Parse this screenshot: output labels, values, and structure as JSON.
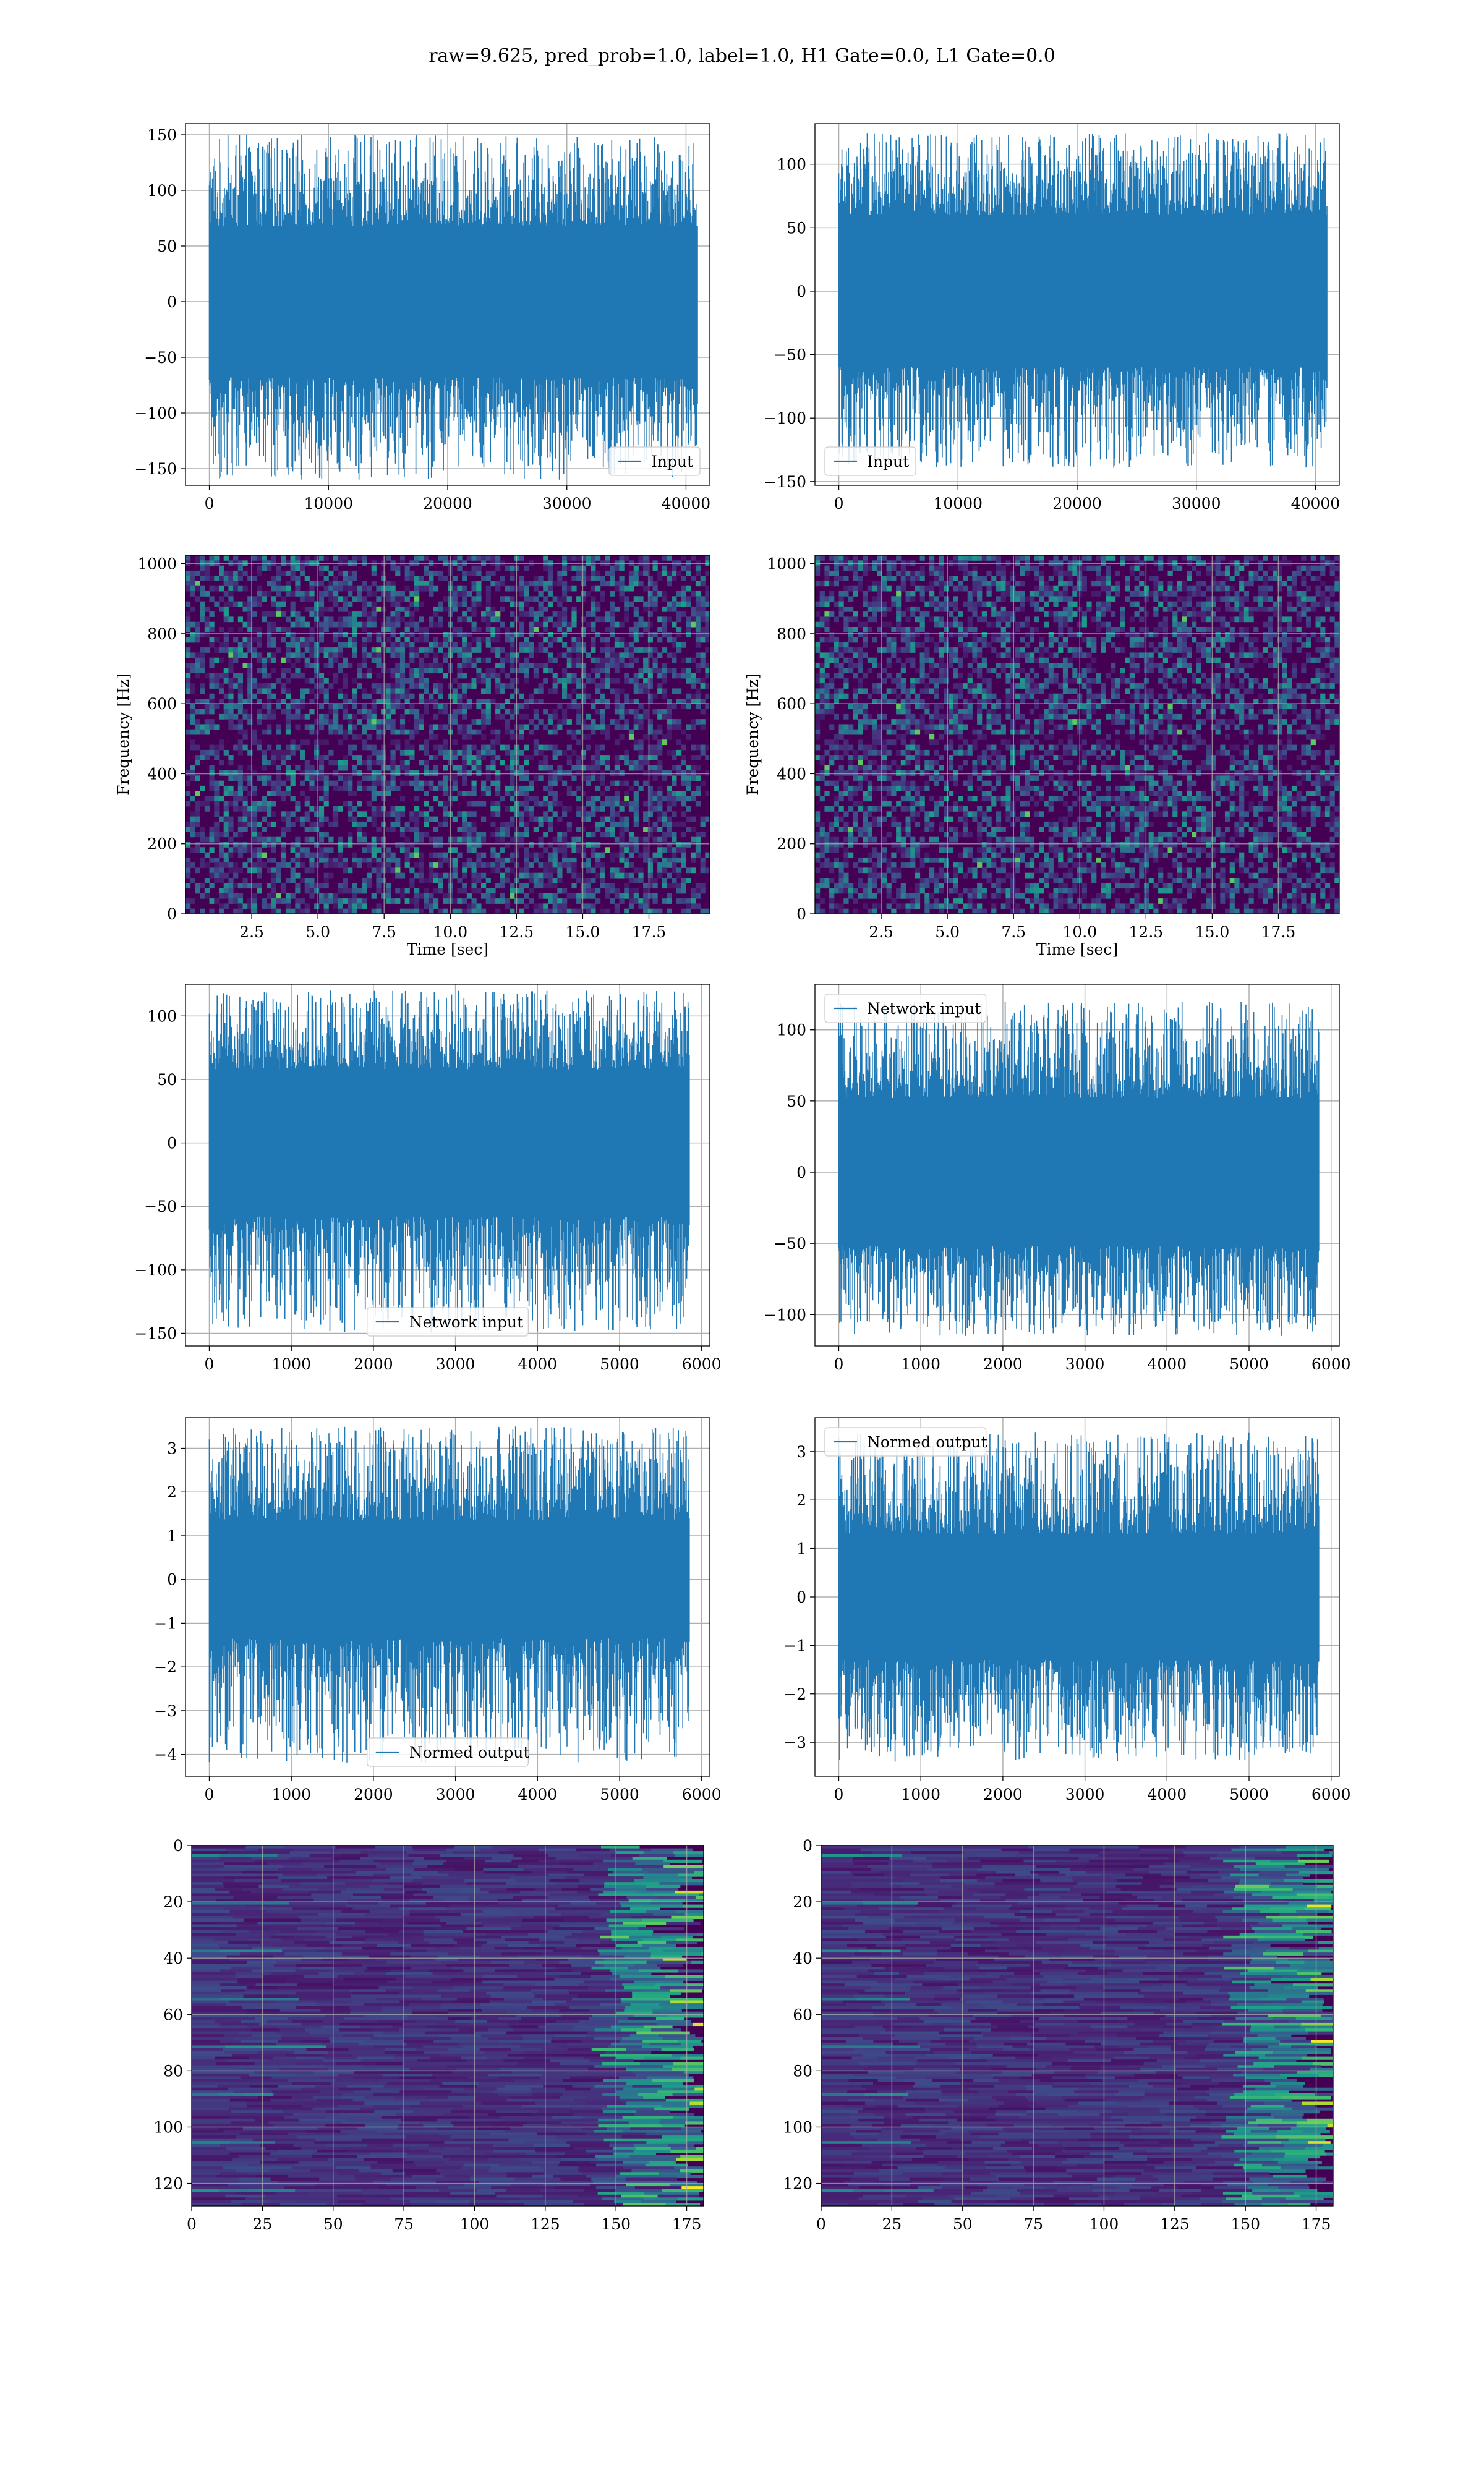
{
  "figure": {
    "suptitle": "raw=9.625, pred_prob=1.0, label=1.0, H1 Gate=0.0, L1 Gate=0.0"
  },
  "colors": {
    "line": "#1f77b4",
    "grid": "#b0b0b0",
    "viridis_low": "#440154",
    "viridis_mid": "#21918c",
    "viridis_high": "#fde725"
  },
  "chart_data": [
    {
      "id": "r1-left",
      "type": "line",
      "legend": "Input",
      "legend_loc": "lower right",
      "xlim": [
        -2000,
        42000
      ],
      "ylim": [
        -165,
        160
      ],
      "xticks": [
        0,
        10000,
        20000,
        30000,
        40000
      ],
      "yticks": [
        -150,
        -100,
        -50,
        0,
        50,
        100,
        150
      ],
      "x_range": [
        0,
        40960
      ],
      "band": [
        -68,
        68
      ],
      "spike_max": [
        150,
        -160
      ],
      "grid": true
    },
    {
      "id": "r1-right",
      "type": "line",
      "legend": "Input",
      "legend_loc": "lower left",
      "xlim": [
        -2000,
        42000
      ],
      "ylim": [
        -153,
        132
      ],
      "xticks": [
        0,
        10000,
        20000,
        30000,
        40000
      ],
      "yticks": [
        -150,
        -100,
        -50,
        0,
        50,
        100
      ],
      "x_range": [
        0,
        40960
      ],
      "band": [
        -60,
        60
      ],
      "spike_max": [
        125,
        -140
      ],
      "grid": true
    },
    {
      "id": "r2-left",
      "type": "heatmap",
      "colormap": "viridis",
      "xlabel": "Time [sec]",
      "ylabel": "Frequency [Hz]",
      "xlim": [
        0,
        19.8
      ],
      "ylim": [
        0,
        1024
      ],
      "xticks": [
        2.5,
        5.0,
        7.5,
        10.0,
        12.5,
        15.0,
        17.5
      ],
      "yticks": [
        0,
        200,
        400,
        600,
        800,
        1000
      ],
      "grid": true
    },
    {
      "id": "r2-right",
      "type": "heatmap",
      "colormap": "viridis",
      "xlabel": "Time [sec]",
      "ylabel": "Frequency [Hz]",
      "xlim": [
        0,
        19.8
      ],
      "ylim": [
        0,
        1024
      ],
      "xticks": [
        2.5,
        5.0,
        7.5,
        10.0,
        12.5,
        15.0,
        17.5
      ],
      "yticks": [
        0,
        200,
        400,
        600,
        800,
        1000
      ],
      "grid": true
    },
    {
      "id": "r3-left",
      "type": "line",
      "legend": "Network input",
      "legend_loc": "lower center",
      "xlim": [
        -290,
        6100
      ],
      "ylim": [
        -160,
        125
      ],
      "xticks": [
        0,
        1000,
        2000,
        3000,
        4000,
        5000,
        6000
      ],
      "yticks": [
        -150,
        -100,
        -50,
        0,
        50,
        100
      ],
      "x_range": [
        0,
        5850
      ],
      "band": [
        -58,
        58
      ],
      "spike_max": [
        120,
        -150
      ],
      "grid": true
    },
    {
      "id": "r3-right",
      "type": "line",
      "legend": "Network input",
      "legend_loc": "upper left",
      "xlim": [
        -290,
        6100
      ],
      "ylim": [
        -122,
        132
      ],
      "xticks": [
        0,
        1000,
        2000,
        3000,
        4000,
        5000,
        6000
      ],
      "yticks": [
        -100,
        -50,
        0,
        50,
        100
      ],
      "x_range": [
        0,
        5850
      ],
      "band": [
        -52,
        52
      ],
      "spike_max": [
        120,
        -115
      ],
      "grid": true
    },
    {
      "id": "r4-left",
      "type": "line",
      "legend": "Normed output",
      "legend_loc": "lower center",
      "xlim": [
        -290,
        6100
      ],
      "ylim": [
        -4.5,
        3.7
      ],
      "xticks": [
        0,
        1000,
        2000,
        3000,
        4000,
        5000,
        6000
      ],
      "yticks": [
        -4,
        -3,
        -2,
        -1,
        0,
        1,
        2,
        3
      ],
      "x_range": [
        0,
        5850
      ],
      "band": [
        -1.35,
        1.35
      ],
      "spike_max": [
        3.5,
        -4.2
      ],
      "grid": true
    },
    {
      "id": "r4-right",
      "type": "line",
      "legend": "Normed output",
      "legend_loc": "upper left",
      "xlim": [
        -290,
        6100
      ],
      "ylim": [
        -3.7,
        3.7
      ],
      "xticks": [
        0,
        1000,
        2000,
        3000,
        4000,
        5000,
        6000
      ],
      "yticks": [
        -3,
        -2,
        -1,
        0,
        1,
        2,
        3
      ],
      "x_range": [
        0,
        5850
      ],
      "band": [
        -1.3,
        1.3
      ],
      "spike_max": [
        3.4,
        -3.4
      ],
      "grid": true
    },
    {
      "id": "r5-left",
      "type": "heatmap",
      "colormap": "viridis",
      "xlim": [
        0,
        181
      ],
      "ylim": [
        128,
        0
      ],
      "xticks": [
        0,
        25,
        50,
        75,
        100,
        125,
        150,
        175
      ],
      "yticks": [
        0,
        20,
        40,
        60,
        80,
        100,
        120
      ],
      "y_inverted": true,
      "grid": true
    },
    {
      "id": "r5-right",
      "type": "heatmap",
      "colormap": "viridis",
      "xlim": [
        0,
        181
      ],
      "ylim": [
        128,
        0
      ],
      "xticks": [
        0,
        25,
        50,
        75,
        100,
        125,
        150,
        175
      ],
      "yticks": [
        0,
        20,
        40,
        60,
        80,
        100,
        120
      ],
      "y_inverted": true,
      "grid": true
    }
  ]
}
